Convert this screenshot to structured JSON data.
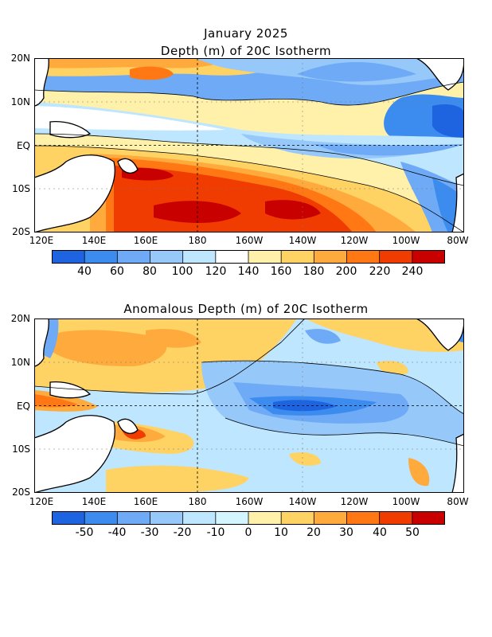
{
  "header": {
    "title_line1": "January 2025",
    "title_line2": "Depth (m) of 20C Isotherm"
  },
  "anomaly_panel": {
    "title": "Anomalous Depth (m) of 20C Isotherm"
  },
  "axes": {
    "lat_labels": [
      "20N",
      "10N",
      "EQ",
      "10S",
      "20S"
    ],
    "lon_labels": [
      "120E",
      "140E",
      "160E",
      "180",
      "160W",
      "140W",
      "120W",
      "100W",
      "80W"
    ]
  },
  "colorbar_depth": {
    "labels": [
      "40",
      "60",
      "80",
      "100",
      "120",
      "140",
      "160",
      "180",
      "200",
      "220",
      "240"
    ],
    "colors": [
      "#1e64e1",
      "#3c8cf0",
      "#6eaaf5",
      "#96c8fa",
      "#bee6ff",
      "#ffffff",
      "#fff0aa",
      "#ffd264",
      "#ffaa3c",
      "#ff7814",
      "#f03c00",
      "#c80000"
    ]
  },
  "colorbar_anomaly": {
    "labels": [
      "-50",
      "-40",
      "-30",
      "-20",
      "-10",
      "0",
      "10",
      "20",
      "30",
      "40",
      "50"
    ],
    "colors": [
      "#1e64e1",
      "#3c8cf0",
      "#6eaaf5",
      "#96c8fa",
      "#bee6ff",
      "#d2f5ff",
      "#fff0aa",
      "#ffd264",
      "#ffaa3c",
      "#ff7814",
      "#f03c00",
      "#c80000"
    ]
  }
}
